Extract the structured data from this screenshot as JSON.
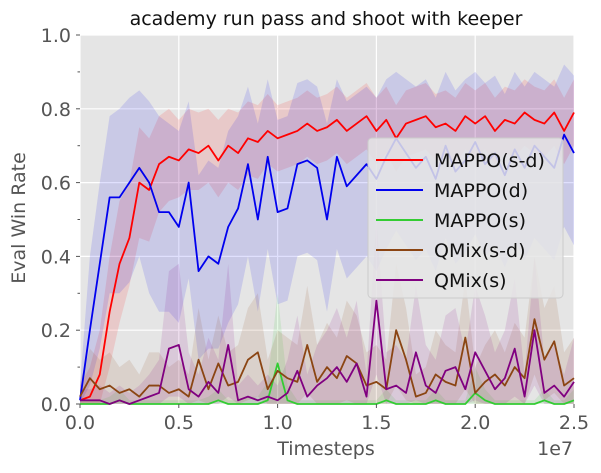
{
  "chart_data": {
    "type": "line",
    "title": "academy run pass and shoot with keeper",
    "xlabel": "Timesteps",
    "ylabel": "Eval Win Rate",
    "x_offset_label": "1e7",
    "xlim": [
      0,
      2.5
    ],
    "ylim": [
      0,
      1.0
    ],
    "x_ticks": [
      "0.0",
      "0.5",
      "1.0",
      "1.5",
      "2.0",
      "2.5"
    ],
    "y_ticks": [
      "0.0",
      "0.2",
      "0.4",
      "0.6",
      "0.8",
      "1.0"
    ],
    "grid": true,
    "legend_position": "center-right",
    "x": [
      0.0,
      0.05,
      0.1,
      0.15,
      0.2,
      0.25,
      0.3,
      0.35,
      0.4,
      0.45,
      0.5,
      0.55,
      0.6,
      0.65,
      0.7,
      0.75,
      0.8,
      0.85,
      0.9,
      0.95,
      1.0,
      1.05,
      1.1,
      1.15,
      1.2,
      1.25,
      1.3,
      1.35,
      1.4,
      1.45,
      1.5,
      1.55,
      1.6,
      1.65,
      1.7,
      1.75,
      1.8,
      1.85,
      1.9,
      1.95,
      2.0,
      2.05,
      2.1,
      2.15,
      2.2,
      2.25,
      2.3,
      2.35,
      2.4,
      2.45,
      2.5
    ],
    "series": [
      {
        "name": "MAPPO(s-d)",
        "color": "#ff0000",
        "values": [
          0.01,
          0.02,
          0.08,
          0.25,
          0.38,
          0.45,
          0.6,
          0.58,
          0.65,
          0.67,
          0.66,
          0.69,
          0.68,
          0.7,
          0.66,
          0.7,
          0.68,
          0.72,
          0.71,
          0.74,
          0.72,
          0.73,
          0.74,
          0.76,
          0.74,
          0.75,
          0.77,
          0.74,
          0.76,
          0.78,
          0.74,
          0.77,
          0.72,
          0.76,
          0.77,
          0.78,
          0.75,
          0.76,
          0.74,
          0.78,
          0.76,
          0.78,
          0.74,
          0.77,
          0.76,
          0.79,
          0.77,
          0.76,
          0.79,
          0.74,
          0.79
        ],
        "lower": [
          0.0,
          0.0,
          0.0,
          0.1,
          0.22,
          0.32,
          0.45,
          0.44,
          0.52,
          0.55,
          0.56,
          0.58,
          0.58,
          0.6,
          0.56,
          0.6,
          0.58,
          0.62,
          0.61,
          0.65,
          0.63,
          0.64,
          0.65,
          0.67,
          0.65,
          0.66,
          0.68,
          0.65,
          0.67,
          0.69,
          0.65,
          0.68,
          0.63,
          0.67,
          0.68,
          0.69,
          0.66,
          0.67,
          0.65,
          0.69,
          0.67,
          0.69,
          0.65,
          0.68,
          0.67,
          0.7,
          0.68,
          0.67,
          0.7,
          0.65,
          0.7
        ],
        "upper": [
          0.05,
          0.1,
          0.2,
          0.4,
          0.55,
          0.6,
          0.75,
          0.72,
          0.78,
          0.8,
          0.77,
          0.8,
          0.79,
          0.8,
          0.77,
          0.8,
          0.79,
          0.82,
          0.81,
          0.84,
          0.81,
          0.82,
          0.83,
          0.85,
          0.83,
          0.84,
          0.86,
          0.83,
          0.85,
          0.87,
          0.83,
          0.86,
          0.81,
          0.85,
          0.86,
          0.87,
          0.84,
          0.85,
          0.83,
          0.87,
          0.85,
          0.87,
          0.83,
          0.86,
          0.85,
          0.88,
          0.86,
          0.85,
          0.88,
          0.83,
          0.88
        ]
      },
      {
        "name": "MAPPO(d)",
        "color": "#0000ee",
        "values": [
          0.01,
          0.2,
          0.38,
          0.56,
          0.56,
          0.6,
          0.64,
          0.6,
          0.52,
          0.52,
          0.48,
          0.6,
          0.36,
          0.4,
          0.38,
          0.48,
          0.53,
          0.65,
          0.5,
          0.67,
          0.52,
          0.53,
          0.65,
          0.66,
          0.64,
          0.5,
          0.67,
          0.59,
          0.62,
          0.65,
          0.61,
          0.67,
          0.72,
          0.68,
          0.64,
          0.67,
          0.61,
          0.7,
          0.63,
          0.66,
          0.71,
          0.65,
          0.68,
          0.62,
          0.69,
          0.64,
          0.7,
          0.67,
          0.64,
          0.73,
          0.68
        ],
        "lower": [
          0.0,
          0.05,
          0.15,
          0.3,
          0.3,
          0.33,
          0.4,
          0.3,
          0.25,
          0.25,
          0.22,
          0.34,
          0.12,
          0.15,
          0.15,
          0.22,
          0.27,
          0.4,
          0.25,
          0.42,
          0.27,
          0.28,
          0.4,
          0.41,
          0.39,
          0.25,
          0.42,
          0.34,
          0.37,
          0.4,
          0.36,
          0.42,
          0.47,
          0.43,
          0.39,
          0.42,
          0.36,
          0.45,
          0.38,
          0.41,
          0.46,
          0.4,
          0.43,
          0.37,
          0.44,
          0.39,
          0.45,
          0.42,
          0.39,
          0.48,
          0.43
        ],
        "upper": [
          0.05,
          0.4,
          0.6,
          0.78,
          0.8,
          0.83,
          0.85,
          0.82,
          0.78,
          0.76,
          0.74,
          0.82,
          0.62,
          0.66,
          0.64,
          0.74,
          0.78,
          0.86,
          0.76,
          0.88,
          0.77,
          0.78,
          0.87,
          0.88,
          0.86,
          0.76,
          0.88,
          0.82,
          0.84,
          0.86,
          0.83,
          0.88,
          0.9,
          0.88,
          0.86,
          0.88,
          0.83,
          0.9,
          0.85,
          0.88,
          0.9,
          0.87,
          0.89,
          0.84,
          0.9,
          0.86,
          0.9,
          0.88,
          0.86,
          0.92,
          0.89
        ]
      },
      {
        "name": "MAPPO(s)",
        "color": "#33cc33",
        "values": [
          0.0,
          0.0,
          0.0,
          0.0,
          0.01,
          0.0,
          0.0,
          0.0,
          0.0,
          0.0,
          0.0,
          0.0,
          0.0,
          0.0,
          0.01,
          0.0,
          0.0,
          0.0,
          0.0,
          0.01,
          0.11,
          0.01,
          0.0,
          0.0,
          0.0,
          0.0,
          0.0,
          0.0,
          0.0,
          0.0,
          0.0,
          0.01,
          0.0,
          0.0,
          0.0,
          0.0,
          0.01,
          0.0,
          0.0,
          0.0,
          0.03,
          0.01,
          0.0,
          0.0,
          0.0,
          0.0,
          0.0,
          0.01,
          0.0,
          0.0,
          0.01
        ],
        "lower": [
          0.0,
          0.0,
          0.0,
          0.0,
          0.0,
          0.0,
          0.0,
          0.0,
          0.0,
          0.0,
          0.0,
          0.0,
          0.0,
          0.0,
          0.0,
          0.0,
          0.0,
          0.0,
          0.0,
          0.0,
          0.0,
          0.0,
          0.0,
          0.0,
          0.0,
          0.0,
          0.0,
          0.0,
          0.0,
          0.0,
          0.0,
          0.0,
          0.0,
          0.0,
          0.0,
          0.0,
          0.0,
          0.0,
          0.0,
          0.0,
          0.0,
          0.0,
          0.0,
          0.0,
          0.0,
          0.0,
          0.0,
          0.0,
          0.0,
          0.0,
          0.0
        ],
        "upper": [
          0.01,
          0.01,
          0.01,
          0.02,
          0.04,
          0.01,
          0.01,
          0.01,
          0.01,
          0.01,
          0.01,
          0.01,
          0.01,
          0.02,
          0.04,
          0.01,
          0.01,
          0.02,
          0.02,
          0.06,
          0.3,
          0.05,
          0.01,
          0.01,
          0.01,
          0.01,
          0.01,
          0.01,
          0.01,
          0.01,
          0.01,
          0.04,
          0.01,
          0.01,
          0.01,
          0.01,
          0.04,
          0.01,
          0.01,
          0.01,
          0.1,
          0.04,
          0.01,
          0.01,
          0.01,
          0.01,
          0.01,
          0.04,
          0.01,
          0.01,
          0.04
        ]
      },
      {
        "name": "QMix(s-d)",
        "color": "#8b4513",
        "values": [
          0.02,
          0.07,
          0.04,
          0.05,
          0.03,
          0.04,
          0.02,
          0.05,
          0.05,
          0.03,
          0.04,
          0.02,
          0.12,
          0.04,
          0.11,
          0.05,
          0.06,
          0.12,
          0.14,
          0.04,
          0.09,
          0.07,
          0.06,
          0.16,
          0.06,
          0.1,
          0.07,
          0.13,
          0.11,
          0.05,
          0.06,
          0.04,
          0.2,
          0.12,
          0.02,
          0.03,
          0.08,
          0.06,
          0.05,
          0.18,
          0.03,
          0.06,
          0.08,
          0.05,
          0.1,
          0.07,
          0.23,
          0.12,
          0.17,
          0.05,
          0.07
        ],
        "lower": [
          0.0,
          0.0,
          0.0,
          0.0,
          0.0,
          0.0,
          0.0,
          0.0,
          0.0,
          0.0,
          0.0,
          0.0,
          0.01,
          0.0,
          0.01,
          0.0,
          0.0,
          0.01,
          0.02,
          0.0,
          0.0,
          0.0,
          0.0,
          0.03,
          0.0,
          0.0,
          0.0,
          0.01,
          0.0,
          0.0,
          0.0,
          0.0,
          0.05,
          0.01,
          0.0,
          0.0,
          0.0,
          0.0,
          0.0,
          0.04,
          0.0,
          0.0,
          0.0,
          0.0,
          0.0,
          0.0,
          0.08,
          0.01,
          0.03,
          0.0,
          0.0
        ],
        "upper": [
          0.06,
          0.15,
          0.12,
          0.14,
          0.1,
          0.12,
          0.08,
          0.14,
          0.14,
          0.1,
          0.12,
          0.08,
          0.26,
          0.12,
          0.24,
          0.14,
          0.16,
          0.26,
          0.3,
          0.12,
          0.2,
          0.18,
          0.16,
          0.32,
          0.16,
          0.22,
          0.18,
          0.28,
          0.24,
          0.14,
          0.16,
          0.12,
          0.38,
          0.26,
          0.08,
          0.1,
          0.2,
          0.16,
          0.14,
          0.34,
          0.1,
          0.16,
          0.2,
          0.14,
          0.22,
          0.18,
          0.4,
          0.26,
          0.32,
          0.14,
          0.18
        ]
      },
      {
        "name": "QMix(s)",
        "color": "#800080",
        "values": [
          0.01,
          0.01,
          0.01,
          0.0,
          0.01,
          0.0,
          0.01,
          0.02,
          0.03,
          0.15,
          0.16,
          0.04,
          0.02,
          0.06,
          0.03,
          0.16,
          0.01,
          0.02,
          0.01,
          0.02,
          0.01,
          0.03,
          0.09,
          0.02,
          0.05,
          0.07,
          0.1,
          0.06,
          0.11,
          0.02,
          0.28,
          0.04,
          0.05,
          0.03,
          0.14,
          0.05,
          0.03,
          0.09,
          0.1,
          0.04,
          0.14,
          0.09,
          0.04,
          0.07,
          0.15,
          0.02,
          0.2,
          0.03,
          0.05,
          0.02,
          0.06
        ],
        "lower": [
          0.0,
          0.0,
          0.0,
          0.0,
          0.0,
          0.0,
          0.0,
          0.0,
          0.0,
          0.02,
          0.02,
          0.0,
          0.0,
          0.0,
          0.0,
          0.02,
          0.0,
          0.0,
          0.0,
          0.0,
          0.0,
          0.0,
          0.0,
          0.0,
          0.0,
          0.0,
          0.0,
          0.0,
          0.0,
          0.0,
          0.08,
          0.0,
          0.0,
          0.0,
          0.01,
          0.0,
          0.0,
          0.0,
          0.0,
          0.0,
          0.01,
          0.0,
          0.0,
          0.0,
          0.02,
          0.0,
          0.05,
          0.0,
          0.0,
          0.0,
          0.0
        ],
        "upper": [
          0.04,
          0.04,
          0.05,
          0.03,
          0.05,
          0.03,
          0.05,
          0.08,
          0.12,
          0.36,
          0.38,
          0.14,
          0.08,
          0.18,
          0.12,
          0.38,
          0.05,
          0.08,
          0.05,
          0.08,
          0.05,
          0.12,
          0.24,
          0.08,
          0.16,
          0.2,
          0.26,
          0.18,
          0.28,
          0.08,
          0.5,
          0.14,
          0.16,
          0.12,
          0.32,
          0.16,
          0.12,
          0.24,
          0.26,
          0.14,
          0.32,
          0.24,
          0.14,
          0.2,
          0.34,
          0.08,
          0.4,
          0.12,
          0.16,
          0.08,
          0.18
        ]
      }
    ]
  }
}
